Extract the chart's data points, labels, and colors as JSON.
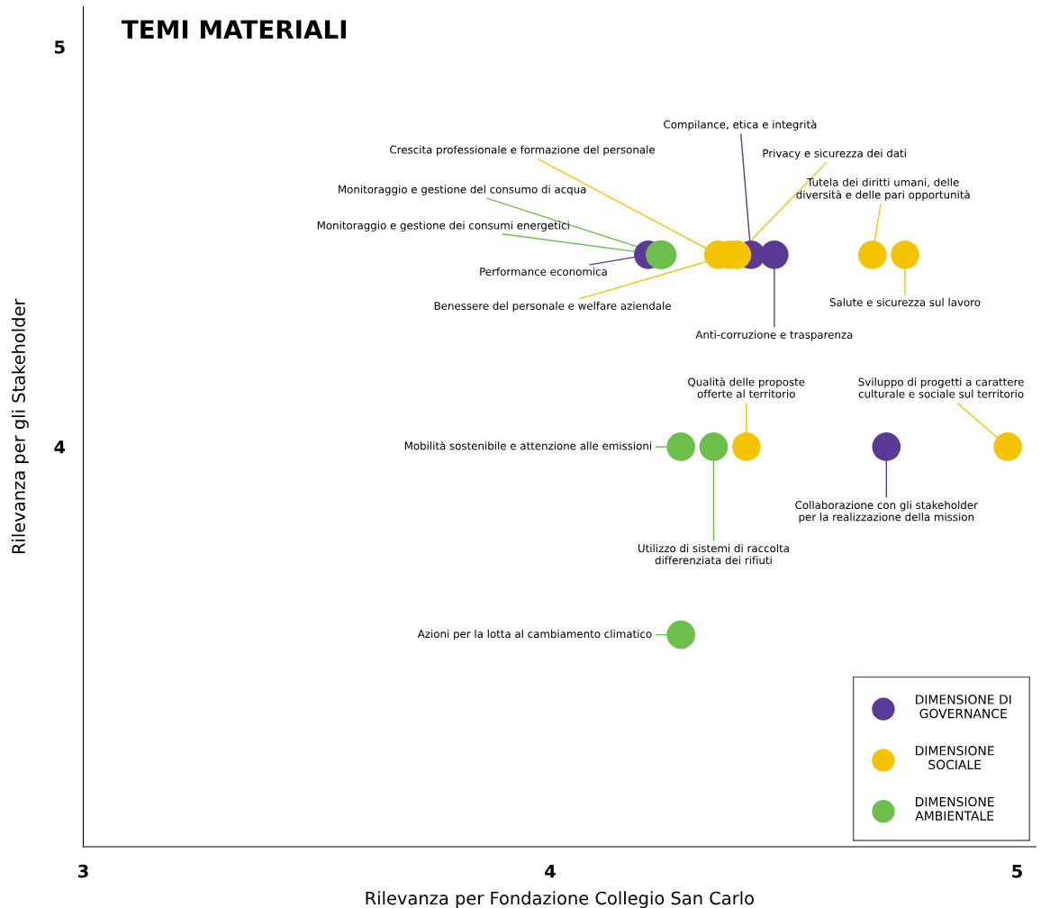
{
  "chart_data": {
    "type": "bubble",
    "title": "TEMI MATERIALI",
    "xlabel": "Rilevanza per Fondazione Collegio San Carlo",
    "ylabel": "Rilevanza per gli Stakeholder",
    "xlim": [
      3,
      5.04
    ],
    "ylim": [
      3,
      5.1
    ],
    "xticks": [
      3,
      4,
      5
    ],
    "yticks": [
      4,
      5
    ],
    "series": [
      {
        "name": "DIMENSIONE DI\nGOVERNANCE",
        "color": "#5b3a96",
        "x": [
          4.21,
          4.43,
          4.48,
          4.72
        ],
        "values": [
          4.48,
          4.48,
          4.48,
          4.0
        ]
      },
      {
        "name": "DIMENSIONE\nSOCIALE",
        "color": "#f5c400",
        "x": [
          4.36,
          4.385,
          4.4,
          4.69,
          4.76,
          4.42,
          4.98
        ],
        "values": [
          4.48,
          4.48,
          4.48,
          4.48,
          4.48,
          4.0,
          4.0
        ]
      },
      {
        "name": "DIMENSIONE\nAMBIENTALE",
        "color": "#6cc04a",
        "x": [
          4.235,
          4.24,
          4.28,
          4.35,
          4.28
        ],
        "values": [
          4.48,
          4.48,
          4.0,
          4.0,
          3.53
        ]
      }
    ],
    "marker": "circle",
    "legend": "bottom right",
    "grid": false,
    "annotations": [
      {
        "text": "Compilance, etica e integrità",
        "x": 4.43,
        "y": 4.48
      },
      {
        "text": "Crescita professionale e formazione del personale",
        "x": 4.36,
        "y": 4.48
      },
      {
        "text": "Privacy e sicurezza dei dati",
        "x": 4.4,
        "y": 4.48
      },
      {
        "text": "Monitoraggio e gestione del consumo di acqua",
        "x": 4.24,
        "y": 4.48
      },
      {
        "text": "Tutela dei diritti umani, delle\ndiversità e delle pari opportunità",
        "x": 4.69,
        "y": 4.48
      },
      {
        "text": "Monitoraggio e gestione dei consumi energetici",
        "x": 4.235,
        "y": 4.48
      },
      {
        "text": "Performance economica",
        "x": 4.21,
        "y": 4.48
      },
      {
        "text": "Benessere del personale e welfare aziendale",
        "x": 4.385,
        "y": 4.48
      },
      {
        "text": "Salute e sicurezza sul lavoro",
        "x": 4.76,
        "y": 4.48
      },
      {
        "text": "Anti-corruzione e trasparenza",
        "x": 4.48,
        "y": 4.48
      },
      {
        "text": "Qualità delle proposte\nofferte al territorio",
        "x": 4.42,
        "y": 4.0
      },
      {
        "text": "Sviluppo di progetti a carattere\nculturale e sociale sul territorio",
        "x": 4.98,
        "y": 4.0
      },
      {
        "text": "Mobilità sostenibile e attenzione alle emissioni",
        "x": 4.28,
        "y": 4.0
      },
      {
        "text": "Collaborazione con gli stakeholder\nper la realizzazione della mission",
        "x": 4.72,
        "y": 4.0
      },
      {
        "text": "Utilizzo di sistemi di raccolta\ndifferenziata dei rifiuti",
        "x": 4.35,
        "y": 4.0
      },
      {
        "text": "Azioni per la lotta al cambiamento climatico",
        "x": 4.28,
        "y": 3.53
      }
    ]
  }
}
